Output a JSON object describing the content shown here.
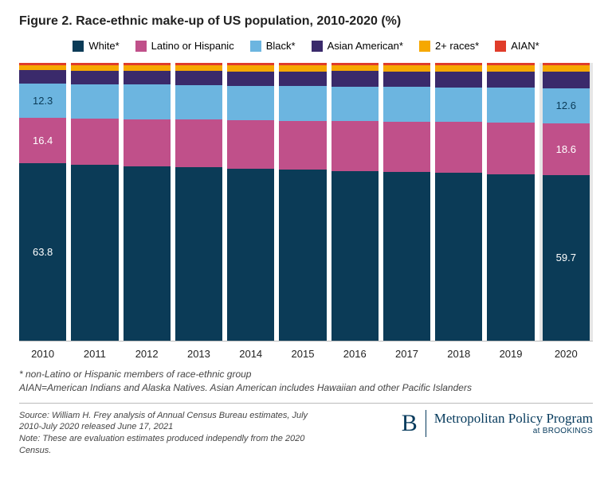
{
  "title": "Figure 2. Race-ethnic make-up of US population, 2010-2020 (%)",
  "chart": {
    "type": "stacked-bar",
    "ylim": [
      0,
      100
    ],
    "background_color": "#ffffff",
    "highlight_bg": "#e6e6e6",
    "series": [
      {
        "key": "white",
        "label": "White*",
        "color": "#0b3b57",
        "text": "#ffffff"
      },
      {
        "key": "latino",
        "label": "Latino or Hispanic",
        "color": "#c0508a",
        "text": "#ffffff"
      },
      {
        "key": "black",
        "label": "Black*",
        "color": "#6cb5e0",
        "text": "#0b3b57"
      },
      {
        "key": "asian",
        "label": "Asian American*",
        "color": "#3a2a6b",
        "text": "#ffffff"
      },
      {
        "key": "two",
        "label": "2+ races*",
        "color": "#f6a800",
        "text": "#0b3b57"
      },
      {
        "key": "aian",
        "label": "AIAN*",
        "color": "#e03c2a",
        "text": "#ffffff"
      }
    ],
    "years": [
      "2010",
      "2011",
      "2012",
      "2013",
      "2014",
      "2015",
      "2016",
      "2017",
      "2018",
      "2019",
      "2020"
    ],
    "highlight_index": 10,
    "data": [
      {
        "white": 63.8,
        "latino": 16.4,
        "black": 12.3,
        "asian": 4.8,
        "two": 1.9,
        "aian": 0.8,
        "labels": {
          "white": "63.8",
          "latino": "16.4",
          "black": "12.3"
        }
      },
      {
        "white": 63.3,
        "latino": 16.7,
        "black": 12.3,
        "asian": 4.9,
        "two": 2.0,
        "aian": 0.8
      },
      {
        "white": 62.8,
        "latino": 17.0,
        "black": 12.4,
        "asian": 5.0,
        "two": 2.0,
        "aian": 0.8
      },
      {
        "white": 62.4,
        "latino": 17.2,
        "black": 12.4,
        "asian": 5.1,
        "two": 2.1,
        "aian": 0.8
      },
      {
        "white": 61.9,
        "latino": 17.4,
        "black": 12.4,
        "asian": 5.3,
        "two": 2.2,
        "aian": 0.8
      },
      {
        "white": 61.5,
        "latino": 17.7,
        "black": 12.4,
        "asian": 5.4,
        "two": 2.2,
        "aian": 0.8
      },
      {
        "white": 61.1,
        "latino": 17.9,
        "black": 12.5,
        "asian": 5.5,
        "two": 2.2,
        "aian": 0.8
      },
      {
        "white": 60.7,
        "latino": 18.1,
        "black": 12.5,
        "asian": 5.6,
        "two": 2.3,
        "aian": 0.8
      },
      {
        "white": 60.4,
        "latino": 18.3,
        "black": 12.5,
        "asian": 5.7,
        "two": 2.3,
        "aian": 0.8
      },
      {
        "white": 60.0,
        "latino": 18.5,
        "black": 12.5,
        "asian": 5.8,
        "two": 2.4,
        "aian": 0.8
      },
      {
        "white": 59.7,
        "latino": 18.6,
        "black": 12.6,
        "asian": 5.9,
        "two": 2.4,
        "aian": 0.8,
        "labels": {
          "white": "59.7",
          "latino": "18.6",
          "black": "12.6"
        }
      }
    ]
  },
  "footnotes": {
    "line1": "* non-Latino or Hispanic members of race-ethnic group",
    "line2": "AIAN=American Indians and Alaska Natives. Asian American includes Hawaiian and other Pacific Islanders"
  },
  "source": {
    "line1": "Source: William H. Frey analysis of Annual Census Bureau estimates, July 2010-July 2020 released June 17, 2021",
    "line2": "Note: These are evaluation estimates produced independly from the 2020 Census."
  },
  "brand": {
    "b": "B",
    "main": "Metropolitan Policy Program",
    "sub": "at BROOKINGS"
  }
}
